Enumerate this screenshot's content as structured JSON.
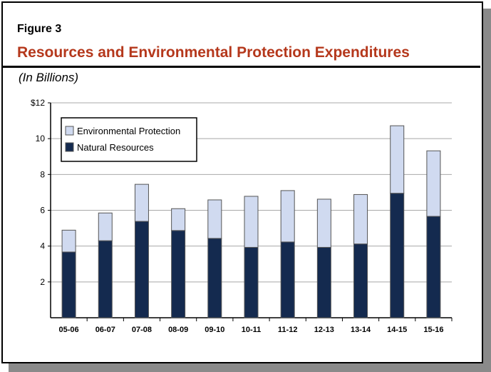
{
  "figure_label": "Figure 3",
  "title": "Resources and Environmental Protection Expenditures",
  "subtitle": "(In Billions)",
  "chart_data": {
    "type": "bar",
    "stacked": true,
    "categories": [
      "05-06",
      "06-07",
      "07-08",
      "08-09",
      "09-10",
      "10-11",
      "11-12",
      "12-13",
      "13-14",
      "14-15",
      "15-16"
    ],
    "series": [
      {
        "name": "Natural Resources",
        "color": "#142a4f",
        "values": [
          3.67,
          4.3,
          5.38,
          4.87,
          4.43,
          3.93,
          4.23,
          3.93,
          4.12,
          6.95,
          5.66
        ]
      },
      {
        "name": "Environmental Protection",
        "color": "#d0daf0",
        "values": [
          1.22,
          1.55,
          2.07,
          1.22,
          2.15,
          2.85,
          2.87,
          2.69,
          2.76,
          3.77,
          3.66
        ]
      }
    ],
    "ylim": [
      0,
      12
    ],
    "yticks": [
      2,
      4,
      6,
      8,
      10,
      12
    ],
    "ytick_labels": [
      "2",
      "4",
      "6",
      "8",
      "10",
      "$12"
    ],
    "grid": true,
    "legend": "top-left",
    "legend_entries": [
      "Environmental Protection",
      "Natural Resources"
    ]
  }
}
